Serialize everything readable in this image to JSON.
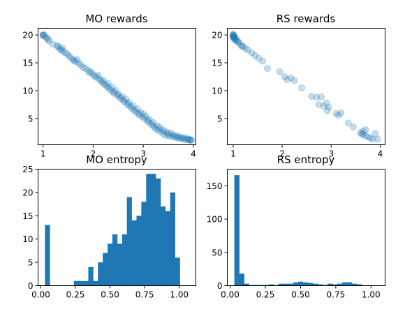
{
  "chart_data": [
    {
      "type": "scatter",
      "title": "MO rewards",
      "xlim": [
        0.9,
        4.05
      ],
      "ylim": [
        0.3,
        21.2
      ],
      "xticks": [
        1,
        2,
        3,
        4
      ],
      "yticks": [
        5,
        10,
        15,
        20
      ],
      "color": "#1f77b4",
      "point_opacity": 0.25,
      "x": [
        1.0,
        1.0,
        1.0,
        1.02,
        1.05,
        1.08,
        1.1,
        1.12,
        1.2,
        1.28,
        1.3,
        1.33,
        1.36,
        1.38,
        1.4,
        1.44,
        1.48,
        1.52,
        1.55,
        1.6,
        1.62,
        1.65,
        1.68,
        1.72,
        1.75,
        1.8,
        1.85,
        1.9,
        1.93,
        1.96,
        2.0,
        2.03,
        2.06,
        2.1,
        2.12,
        2.15,
        2.18,
        2.2,
        2.22,
        2.25,
        2.28,
        2.3,
        2.32,
        2.35,
        2.38,
        2.4,
        2.42,
        2.45,
        2.48,
        2.5,
        2.52,
        2.55,
        2.58,
        2.6,
        2.62,
        2.65,
        2.68,
        2.7,
        2.72,
        2.75,
        2.78,
        2.8,
        2.82,
        2.85,
        2.88,
        2.9,
        2.92,
        2.95,
        2.98,
        3.0,
        3.02,
        3.05,
        3.08,
        3.1,
        3.12,
        3.15,
        3.18,
        3.2,
        3.22,
        3.25,
        3.28,
        3.3,
        3.32,
        3.35,
        3.38,
        3.4,
        3.42,
        3.45,
        3.48,
        3.5,
        3.52,
        3.55,
        3.58,
        3.6,
        3.62,
        3.65,
        3.68,
        3.7,
        3.72,
        3.75,
        3.78,
        3.8,
        3.82,
        3.85,
        3.88,
        3.9,
        3.92,
        3.93,
        3.95,
        3.96
      ],
      "y": [
        20.0,
        20.0,
        19.9,
        20.0,
        19.6,
        19.4,
        19.2,
        18.9,
        18.3,
        18.1,
        17.9,
        17.5,
        17.3,
        17.7,
        17.1,
        16.8,
        16.6,
        16.2,
        15.9,
        15.6,
        15.4,
        15.2,
        15.6,
        14.9,
        14.6,
        14.2,
        14.0,
        13.6,
        13.2,
        13.4,
        12.9,
        12.6,
        12.4,
        12.8,
        12.1,
        11.8,
        11.5,
        11.9,
        11.2,
        11.0,
        10.7,
        11.3,
        10.4,
        10.1,
        10.6,
        9.8,
        9.5,
        10.0,
        9.2,
        9.4,
        8.9,
        8.6,
        9.0,
        8.3,
        8.0,
        8.5,
        7.7,
        7.4,
        7.9,
        7.1,
        6.8,
        7.3,
        6.5,
        6.2,
        6.7,
        5.9,
        5.6,
        6.1,
        5.3,
        5.8,
        5.0,
        5.4,
        4.7,
        4.4,
        4.9,
        4.1,
        3.8,
        4.3,
        3.5,
        3.2,
        3.7,
        2.9,
        3.4,
        2.6,
        3.0,
        2.3,
        2.8,
        2.0,
        2.5,
        2.2,
        1.9,
        2.4,
        1.7,
        2.1,
        1.8,
        1.6,
        1.9,
        1.5,
        1.7,
        1.4,
        1.6,
        1.3,
        1.5,
        1.2,
        1.4,
        1.3,
        1.2,
        1.1,
        1.2,
        1.1
      ]
    },
    {
      "type": "scatter",
      "title": "RS rewards",
      "xlim": [
        0.88,
        4.1
      ],
      "ylim": [
        0.3,
        21.2
      ],
      "xticks": [
        1,
        2,
        3,
        4
      ],
      "yticks": [
        5,
        10,
        15,
        20
      ],
      "color": "#1f77b4",
      "point_opacity": 0.25,
      "x": [
        1.0,
        1.0,
        1.0,
        1.0,
        1.0,
        1.01,
        1.01,
        1.02,
        1.02,
        1.03,
        1.04,
        1.05,
        1.06,
        1.08,
        1.1,
        1.12,
        1.15,
        1.18,
        1.2,
        1.25,
        1.3,
        1.38,
        1.45,
        1.52,
        1.6,
        1.7,
        1.95,
        2.05,
        2.1,
        2.18,
        2.25,
        2.4,
        2.6,
        2.7,
        2.75,
        2.8,
        2.85,
        2.9,
        2.92,
        2.95,
        3.1,
        3.15,
        3.2,
        3.35,
        3.45,
        3.6,
        3.65,
        3.65,
        3.7,
        3.75,
        3.8,
        3.85,
        3.9,
        3.95,
        3.62,
        3.7
      ],
      "y": [
        20.0,
        19.9,
        19.8,
        19.6,
        20.1,
        19.5,
        20.0,
        19.3,
        19.7,
        19.5,
        19.2,
        19.0,
        19.4,
        18.9,
        18.8,
        18.6,
        18.2,
        17.9,
        18.0,
        17.6,
        17.3,
        16.8,
        16.3,
        15.8,
        15.3,
        14.0,
        13.4,
        12.5,
        12.0,
        12.3,
        11.8,
        10.5,
        9.0,
        8.8,
        7.5,
        8.9,
        7.2,
        7.8,
        6.4,
        7.0,
        5.9,
        5.6,
        6.0,
        4.2,
        3.5,
        2.5,
        2.7,
        2.2,
        1.9,
        1.7,
        1.5,
        1.3,
        2.3,
        1.3,
        2.2,
        3.0
      ]
    },
    {
      "type": "bar",
      "title": "MO entropy",
      "xlim": [
        -0.02,
        1.12
      ],
      "ylim": [
        0,
        25
      ],
      "xticks": [
        "0.00",
        "0.25",
        "0.50",
        "0.75",
        "1.00"
      ],
      "xtick_values": [
        0,
        0.25,
        0.5,
        0.75,
        1.0
      ],
      "yticks": [
        0,
        5,
        10,
        15,
        20,
        25
      ],
      "color": "#1f77b4",
      "bin_start": 0.03,
      "bin_width": 0.0348,
      "values": [
        13,
        0,
        0,
        0,
        0,
        0,
        1,
        1,
        1,
        4,
        1,
        5,
        7,
        9,
        11,
        9,
        11,
        19,
        14,
        15,
        18,
        24,
        24,
        23,
        17,
        16,
        20,
        6
      ]
    },
    {
      "type": "bar",
      "title": "RS entropy",
      "xlim": [
        -0.02,
        1.1
      ],
      "ylim": [
        0,
        175
      ],
      "xticks": [
        "0.00",
        "0.25",
        "0.50",
        "0.75",
        "1.00"
      ],
      "xtick_values": [
        0,
        0.25,
        0.5,
        0.75,
        1.0
      ],
      "yticks": [
        0,
        50,
        100,
        150
      ],
      "color": "#1f77b4",
      "bin_start": 0.03,
      "bin_width": 0.0348,
      "values": [
        166,
        18,
        3,
        1,
        1,
        1,
        1,
        2,
        1,
        3,
        3,
        3,
        5,
        6,
        5,
        4,
        3,
        2,
        1,
        3,
        2,
        3,
        5,
        5,
        3,
        2,
        0,
        0
      ]
    }
  ]
}
